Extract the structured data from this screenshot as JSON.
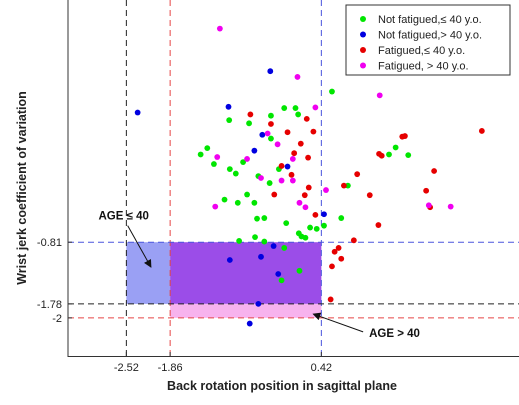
{
  "chart_data": {
    "type": "scatter",
    "title": "",
    "xlabel": "Back rotation position in sagittal plane",
    "ylabel": "Wrist jerk coefficient of variation",
    "xlim": [
      -3.4,
      3.4
    ],
    "ylim": [
      -2.6,
      3.0
    ],
    "x_ticks": [
      {
        "value": -2.52,
        "label": "-2.52"
      },
      {
        "value": -1.86,
        "label": "-1.86"
      },
      {
        "value": 0.42,
        "label": "0.42"
      }
    ],
    "y_ticks": [
      {
        "value": -0.81,
        "label": "-0.81"
      },
      {
        "value": -1.78,
        "label": "-1.78"
      },
      {
        "value": -2.0,
        "label": "-2"
      }
    ],
    "legend_position": "top-right",
    "series": [
      {
        "name": "Not fatigued,≤ 40 y.o.",
        "color": "#00e600",
        "points": [
          [
            -0.97,
            1.11
          ],
          [
            -0.67,
            1.06
          ],
          [
            -0.34,
            0.82
          ],
          [
            -0.34,
            1.18
          ],
          [
            -0.14,
            1.3
          ],
          [
            0.07,
            1.2
          ],
          [
            -1.3,
            0.67
          ],
          [
            -1.2,
            0.42
          ],
          [
            -1.4,
            0.57
          ],
          [
            -0.87,
            0.27
          ],
          [
            -0.76,
            0.45
          ],
          [
            -0.96,
            0.34
          ],
          [
            -0.53,
            0.23
          ],
          [
            -0.22,
            0.34
          ],
          [
            -0.36,
            0.12
          ],
          [
            -1.04,
            -0.14
          ],
          [
            -0.84,
            -0.19
          ],
          [
            -0.59,
            -0.19
          ],
          [
            -0.44,
            -0.43
          ],
          [
            -0.55,
            -0.44
          ],
          [
            -0.11,
            -0.51
          ],
          [
            -0.82,
            -0.79
          ],
          [
            -0.58,
            -0.73
          ],
          [
            -0.44,
            -0.8
          ],
          [
            0.08,
            -0.67
          ],
          [
            -0.14,
            -0.9
          ],
          [
            0.35,
            -0.6
          ],
          [
            0.12,
            -0.72
          ],
          [
            -0.7,
            -0.06
          ],
          [
            0.25,
            -0.58
          ],
          [
            0.46,
            -0.55
          ],
          [
            0.18,
            -0.74
          ],
          [
            -0.18,
            -1.41
          ],
          [
            0.09,
            -1.26
          ],
          [
            0.72,
            -0.43
          ],
          [
            0.82,
            0.08
          ],
          [
            1.44,
            0.57
          ],
          [
            1.73,
            0.56
          ],
          [
            1.54,
            0.68
          ],
          [
            0.58,
            1.56
          ],
          [
            0.03,
            1.3
          ]
        ]
      },
      {
        "name": "Not fatigued,> 40 y.o.",
        "color": "#0000e0",
        "points": [
          [
            -2.35,
            1.23
          ],
          [
            -0.98,
            1.32
          ],
          [
            -0.59,
            0.63
          ],
          [
            -0.47,
            0.88
          ],
          [
            -0.35,
            1.88
          ],
          [
            -0.09,
            0.38
          ],
          [
            -0.96,
            -1.09
          ],
          [
            -0.49,
            -1.04
          ],
          [
            -0.23,
            -1.31
          ],
          [
            -0.53,
            -1.78
          ],
          [
            -0.66,
            -2.09
          ],
          [
            0.46,
            -0.37
          ],
          [
            -0.3,
            -0.87
          ]
        ]
      },
      {
        "name": "Fatigued,≤ 40 y.o.",
        "color": "#e60000",
        "points": [
          [
            -0.65,
            1.2
          ],
          [
            -0.34,
            1.05
          ],
          [
            0.2,
            1.13
          ],
          [
            0.11,
            0.74
          ],
          [
            -0.09,
            0.92
          ],
          [
            0.3,
            0.93
          ],
          [
            0.22,
            0.52
          ],
          [
            -0.03,
            0.25
          ],
          [
            -0.29,
            -0.06
          ],
          [
            0.23,
            0.05
          ],
          [
            -0.18,
            0.39
          ],
          [
            0.01,
            0.59
          ],
          [
            0.17,
            -0.07
          ],
          [
            0.76,
            0.08
          ],
          [
            0.33,
            -0.38
          ],
          [
            0.91,
            -0.78
          ],
          [
            1.15,
            -0.07
          ],
          [
            1.28,
            -0.54
          ],
          [
            0.96,
            0.26
          ],
          [
            2.0,
            0.0
          ],
          [
            2.12,
            0.31
          ],
          [
            1.33,
            0.55
          ],
          [
            1.68,
            0.86
          ],
          [
            1.64,
            0.85
          ],
          [
            2.84,
            0.94
          ],
          [
            2.06,
            -0.26
          ],
          [
            1.29,
            0.58
          ],
          [
            0.72,
            -1.07
          ],
          [
            0.68,
            -0.9
          ],
          [
            0.58,
            -1.19
          ],
          [
            0.62,
            -0.96
          ],
          [
            0.56,
            -1.71
          ]
        ]
      },
      {
        "name": "Fatigued, > 40 y.o.",
        "color": "#f000f0",
        "points": [
          [
            -1.11,
            2.55
          ],
          [
            0.06,
            1.79
          ],
          [
            0.33,
            1.31
          ],
          [
            -1.15,
            0.53
          ],
          [
            -0.7,
            0.5
          ],
          [
            -0.39,
            0.9
          ],
          [
            -0.01,
            0.5
          ],
          [
            -0.24,
            0.73
          ],
          [
            -0.49,
            0.2
          ],
          [
            -0.18,
            0.16
          ],
          [
            -0.01,
            0.16
          ],
          [
            -1.18,
            -0.25
          ],
          [
            0.49,
            0.01
          ],
          [
            0.09,
            -0.19
          ],
          [
            0.18,
            -0.26
          ],
          [
            1.3,
            1.5
          ],
          [
            2.37,
            -0.25
          ],
          [
            2.04,
            -0.23
          ]
        ]
      }
    ],
    "shaded_regions": [
      {
        "x": [
          -2.52,
          -1.86
        ],
        "y": [
          -1.78,
          -0.81
        ],
        "color": "#9aa0f4"
      },
      {
        "x": [
          -1.86,
          0.42
        ],
        "y": [
          -1.78,
          -0.81
        ],
        "color": "#9b4de8"
      },
      {
        "x": [
          -1.86,
          0.42
        ],
        "y": [
          -2.0,
          -1.78
        ],
        "color": "#f7b3ee"
      }
    ],
    "reference_lines": [
      {
        "orientation": "vertical",
        "value": -2.52,
        "color": "#222222"
      },
      {
        "orientation": "vertical",
        "value": -1.86,
        "color": "#e64545"
      },
      {
        "orientation": "vertical",
        "value": 0.42,
        "color": "#4a55dd"
      },
      {
        "orientation": "horizontal",
        "value": -0.81,
        "color": "#4a55dd"
      },
      {
        "orientation": "horizontal",
        "value": -1.78,
        "color": "#222222"
      },
      {
        "orientation": "horizontal",
        "value": -2.0,
        "color": "#e64545"
      }
    ],
    "annotations": [
      {
        "text": "AGE ≤ 40",
        "arrow_from": [
          -2.5,
          -0.55
        ],
        "arrow_to": [
          -2.15,
          -1.2
        ]
      },
      {
        "text": "AGE > 40",
        "arrow_from": [
          1.05,
          -2.22
        ],
        "arrow_to": [
          0.3,
          -1.94
        ]
      }
    ]
  }
}
